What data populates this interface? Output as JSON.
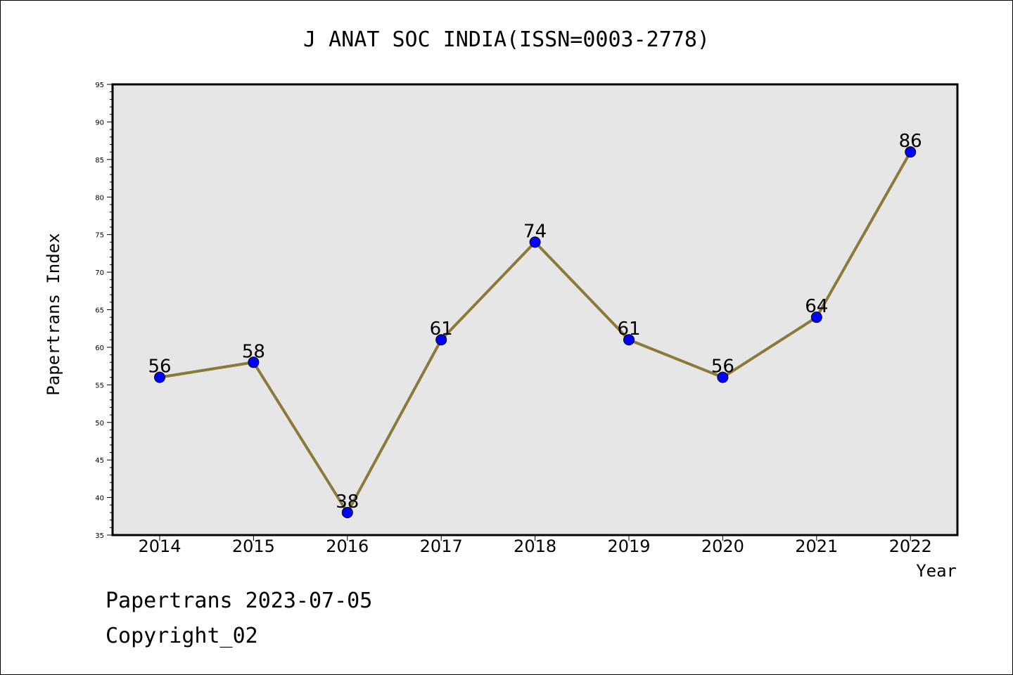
{
  "chart_data": {
    "type": "line",
    "title": "J ANAT SOC INDIA(ISSN=0003-2778)",
    "xlabel": "Year",
    "ylabel": "Papertrans Index",
    "categories": [
      "2014",
      "2015",
      "2016",
      "2017",
      "2018",
      "2019",
      "2020",
      "2021",
      "2022"
    ],
    "values": [
      56,
      58,
      38,
      61,
      74,
      61,
      56,
      64,
      86
    ],
    "ylim": [
      35,
      95
    ],
    "yticks": [
      35,
      40,
      45,
      50,
      55,
      60,
      65,
      70,
      75,
      80,
      85,
      90,
      95
    ],
    "grid": false,
    "colors": {
      "line": "#8b7a3a",
      "marker": "#0000ff",
      "plot_background": "#e6e6e6"
    }
  },
  "footer": {
    "date_line": "Papertrans 2023-07-05",
    "copyright": "Copyright_02"
  }
}
